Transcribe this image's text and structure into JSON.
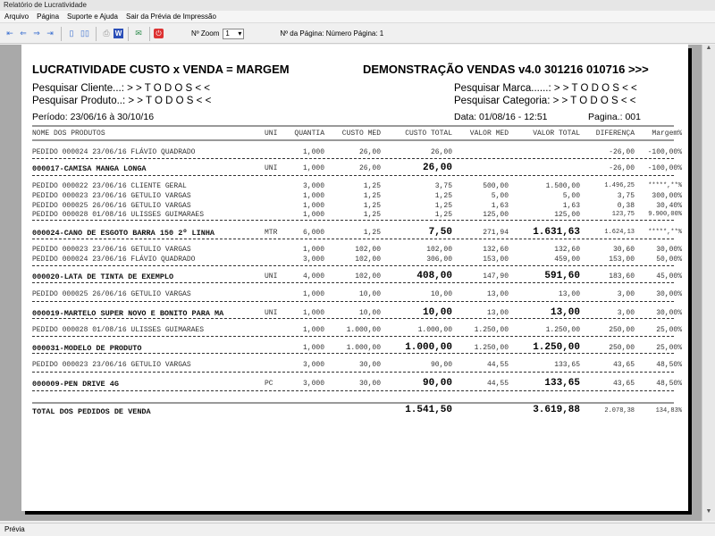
{
  "window": {
    "title": "Relatório de Lucratividade"
  },
  "menu": [
    "Arquivo",
    "Página",
    "Suporte e Ajuda",
    "Sair da Prévia de Impressão"
  ],
  "toolbar": {
    "zoom_label": "Nº Zoom",
    "zoom_value": "1",
    "page_label": "Nº da Página: Número Página: 1",
    "icons": [
      "first-page-icon",
      "prev-page-icon",
      "next-page-icon",
      "last-page-icon",
      "single-page-icon",
      "two-pages-icon",
      "print-icon",
      "word-export-icon",
      "email-icon",
      "close-preview-icon"
    ]
  },
  "report": {
    "title_left": "LUCRATIVIDADE CUSTO x VENDA = MARGEM",
    "title_right": "DEMONSTRAÇÃO VENDAS v4.0 301216 010716 >>>",
    "filter_cliente": "Pesquisar Cliente...: > >  T O D O S  < <",
    "filter_produto": "Pesquisar Produto..: > >  T O D O S  < <",
    "filter_marca": "Pesquisar Marca......: > >  T O D O S  < <",
    "filter_categoria": "Pesquisar Categoria: > >  T O D O S  < <",
    "periodo": "Período: 23/06/16 à 30/10/16",
    "data": "Data: 01/08/16 - 12:51",
    "pagina": "Pagina.: 001",
    "columns": [
      "NOME DOS PRODUTOS",
      "UNI",
      "QUANTIA",
      "CUSTO MED",
      "CUSTO TOTAL",
      "VALOR MED",
      "VALOR TOTAL",
      "DIFERENÇA",
      "Margem%"
    ],
    "rows": [
      {
        "type": "pedido",
        "name": "PEDIDO 000024  23/06/16  FLÁVIO QUADRADO",
        "uni": "",
        "qtd": "1,000",
        "cmed": "26,00",
        "ctot": "26,00",
        "vmed": "",
        "vtot": "",
        "dif": "-26,00",
        "marg": "-100,00%"
      },
      {
        "type": "produto",
        "name": "000017-CAMISA MANGA LONGA",
        "uni": "UNI",
        "qtd": "1,000",
        "cmed": "26,00",
        "ctot": "26,00",
        "vmed": "",
        "vtot": "",
        "dif": "-26,00",
        "marg": "-100,00%"
      },
      {
        "type": "pedido",
        "name": "PEDIDO 000022  23/06/16  CLIENTE GERAL",
        "uni": "",
        "qtd": "3,000",
        "cmed": "1,25",
        "ctot": "3,75",
        "vmed": "500,00",
        "vtot": "1.500,00",
        "dif": "1.496,25",
        "marg": "*****,**%"
      },
      {
        "type": "pedido",
        "name": "PEDIDO 000023  23/06/16  GETULIO VARGAS",
        "uni": "",
        "qtd": "1,000",
        "cmed": "1,25",
        "ctot": "1,25",
        "vmed": "5,00",
        "vtot": "5,00",
        "dif": "3,75",
        "marg": "300,00%"
      },
      {
        "type": "pedido",
        "name": "PEDIDO 000025  26/06/16  GETULIO VARGAS",
        "uni": "",
        "qtd": "1,000",
        "cmed": "1,25",
        "ctot": "1,25",
        "vmed": "1,63",
        "vtot": "1,63",
        "dif": "0,38",
        "marg": "30,40%"
      },
      {
        "type": "pedido",
        "name": "PEDIDO 000028  01/08/16  ULISSES GUIMARAES",
        "uni": "",
        "qtd": "1,000",
        "cmed": "1,25",
        "ctot": "1,25",
        "vmed": "125,00",
        "vtot": "125,00",
        "dif": "123,75",
        "marg": "9.900,00%"
      },
      {
        "type": "produto",
        "name": "000024-CANO DE ESGOTO BARRA 150 2º LINHA",
        "uni": "MTR",
        "qtd": "6,000",
        "cmed": "1,25",
        "ctot": "7,50",
        "vmed": "271,94",
        "vtot": "1.631,63",
        "dif": "1.624,13",
        "marg": "*****,**%"
      },
      {
        "type": "pedido",
        "name": "PEDIDO 000023  23/06/16  GETULIO VARGAS",
        "uni": "",
        "qtd": "1,000",
        "cmed": "102,00",
        "ctot": "102,00",
        "vmed": "132,60",
        "vtot": "132,60",
        "dif": "30,60",
        "marg": "30,00%"
      },
      {
        "type": "pedido",
        "name": "PEDIDO 000024  23/06/16  FLÁVIO QUADRADO",
        "uni": "",
        "qtd": "3,000",
        "cmed": "102,00",
        "ctot": "306,00",
        "vmed": "153,00",
        "vtot": "459,00",
        "dif": "153,00",
        "marg": "50,00%"
      },
      {
        "type": "produto",
        "name": "000020-LATA DE TINTA DE EXEMPLO",
        "uni": "UNI",
        "qtd": "4,000",
        "cmed": "102,00",
        "ctot": "408,00",
        "vmed": "147,90",
        "vtot": "591,60",
        "dif": "183,60",
        "marg": "45,00%"
      },
      {
        "type": "pedido",
        "name": "PEDIDO 000025  26/06/16  GETULIO VARGAS",
        "uni": "",
        "qtd": "1,000",
        "cmed": "10,00",
        "ctot": "10,00",
        "vmed": "13,00",
        "vtot": "13,00",
        "dif": "3,00",
        "marg": "30,00%"
      },
      {
        "type": "produto",
        "name": "000019-MARTELO SUPER NOVO E BONITO PARA MA",
        "uni": "UNI",
        "qtd": "1,000",
        "cmed": "10,00",
        "ctot": "10,00",
        "vmed": "13,00",
        "vtot": "13,00",
        "dif": "3,00",
        "marg": "30,00%"
      },
      {
        "type": "pedido",
        "name": "PEDIDO 000028  01/08/16  ULISSES GUIMARAES",
        "uni": "",
        "qtd": "1,000",
        "cmed": "1.000,00",
        "ctot": "1.000,00",
        "vmed": "1.250,00",
        "vtot": "1.250,00",
        "dif": "250,00",
        "marg": "25,00%"
      },
      {
        "type": "produto",
        "name": "000031-MODELO DE PRODUTO",
        "uni": "",
        "qtd": "1,000",
        "cmed": "1.000,00",
        "ctot": "1.000,00",
        "vmed": "1.250,00",
        "vtot": "1.250,00",
        "dif": "250,00",
        "marg": "25,00%"
      },
      {
        "type": "pedido",
        "name": "PEDIDO 000023  23/06/16  GETULIO VARGAS",
        "uni": "",
        "qtd": "3,000",
        "cmed": "30,00",
        "ctot": "90,00",
        "vmed": "44,55",
        "vtot": "133,65",
        "dif": "43,65",
        "marg": "48,50%"
      },
      {
        "type": "produto",
        "name": "000009-PEN DRIVE 4G",
        "uni": "PC",
        "qtd": "3,000",
        "cmed": "30,00",
        "ctot": "90,00",
        "vmed": "44,55",
        "vtot": "133,65",
        "dif": "43,65",
        "marg": "48,50%"
      }
    ],
    "total": {
      "label": "TOTAL DOS PEDIDOS DE VENDA",
      "ctot": "1.541,50",
      "vtot": "3.619,88",
      "dif": "2.078,38",
      "marg": "134,83%"
    }
  },
  "status": {
    "text": "Prévia"
  }
}
